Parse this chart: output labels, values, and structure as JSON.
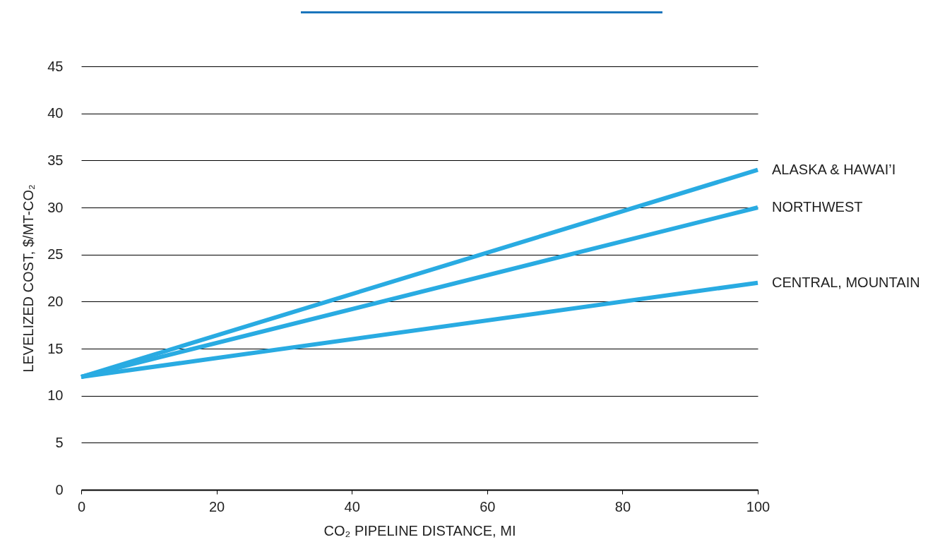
{
  "chart_data": {
    "type": "line",
    "xlabel": "CO₂ PIPELINE DISTANCE, MI",
    "ylabel": "LEVELIZED COST, $/MT-CO₂",
    "x": [
      0,
      100
    ],
    "series": [
      {
        "name": "ALASKA & HAWAI’I",
        "color": "#29abe2",
        "values": [
          12,
          34
        ]
      },
      {
        "name": "NORTHWEST",
        "color": "#29abe2",
        "values": [
          12,
          30
        ]
      },
      {
        "name": "CENTRAL, MOUNTAIN",
        "color": "#29abe2",
        "values": [
          12,
          22
        ]
      }
    ],
    "xlim": [
      0,
      100
    ],
    "xticks": [
      0,
      20,
      40,
      60,
      80,
      100
    ],
    "ylim": [
      0,
      45
    ],
    "yticks": [
      0,
      5,
      10,
      15,
      20,
      25,
      30,
      35,
      40,
      45
    ],
    "grid": "y",
    "marker": "none",
    "line_style": "solid"
  }
}
